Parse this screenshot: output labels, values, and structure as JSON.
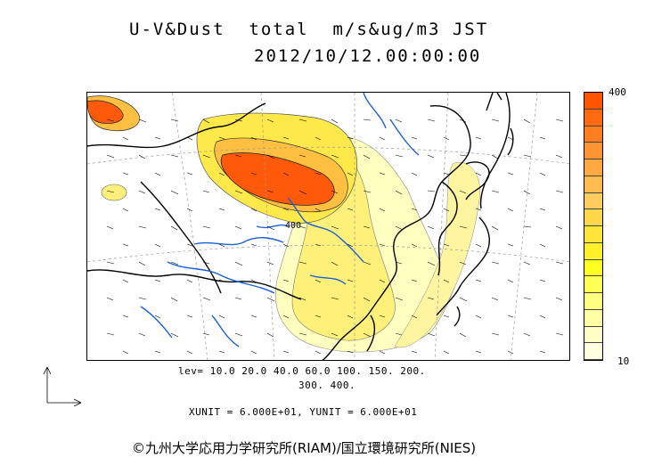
{
  "title": {
    "line1": "U-V&Dust  total  m/s&ug/m3 JST",
    "line2": "2012/10/12.00:00:00"
  },
  "contour_label": "400",
  "colorbar": {
    "max_label": "400",
    "min_label": "10",
    "colors": [
      "#ff5500",
      "#ff6a10",
      "#ff7e20",
      "#ff9530",
      "#ffa940",
      "#ffbb50",
      "#ffcc60",
      "#ffd84a",
      "#ffe53a",
      "#fff02a",
      "#ffff20",
      "#ffff55",
      "#ffff80",
      "#ffffa6",
      "#ffffc6",
      "#ffffe0"
    ]
  },
  "levels": {
    "line1": "lev= 10.0 20.0 40.0 60.0 100. 150. 200.",
    "line2": "300. 400."
  },
  "units_text": "XUNIT = 6.000E+01, YUNIT = 6.000E+01",
  "credit": "©九州大学応用力学研究所(RIAM)/国立環境研究所(NIES)",
  "colors": {
    "high": "#ff5a0a",
    "mid": "#ffbf40",
    "low": "#fff07a",
    "faint": "#ffffc0",
    "coast": "#000000",
    "river": "#1a5fd6",
    "grid": "#999999"
  }
}
